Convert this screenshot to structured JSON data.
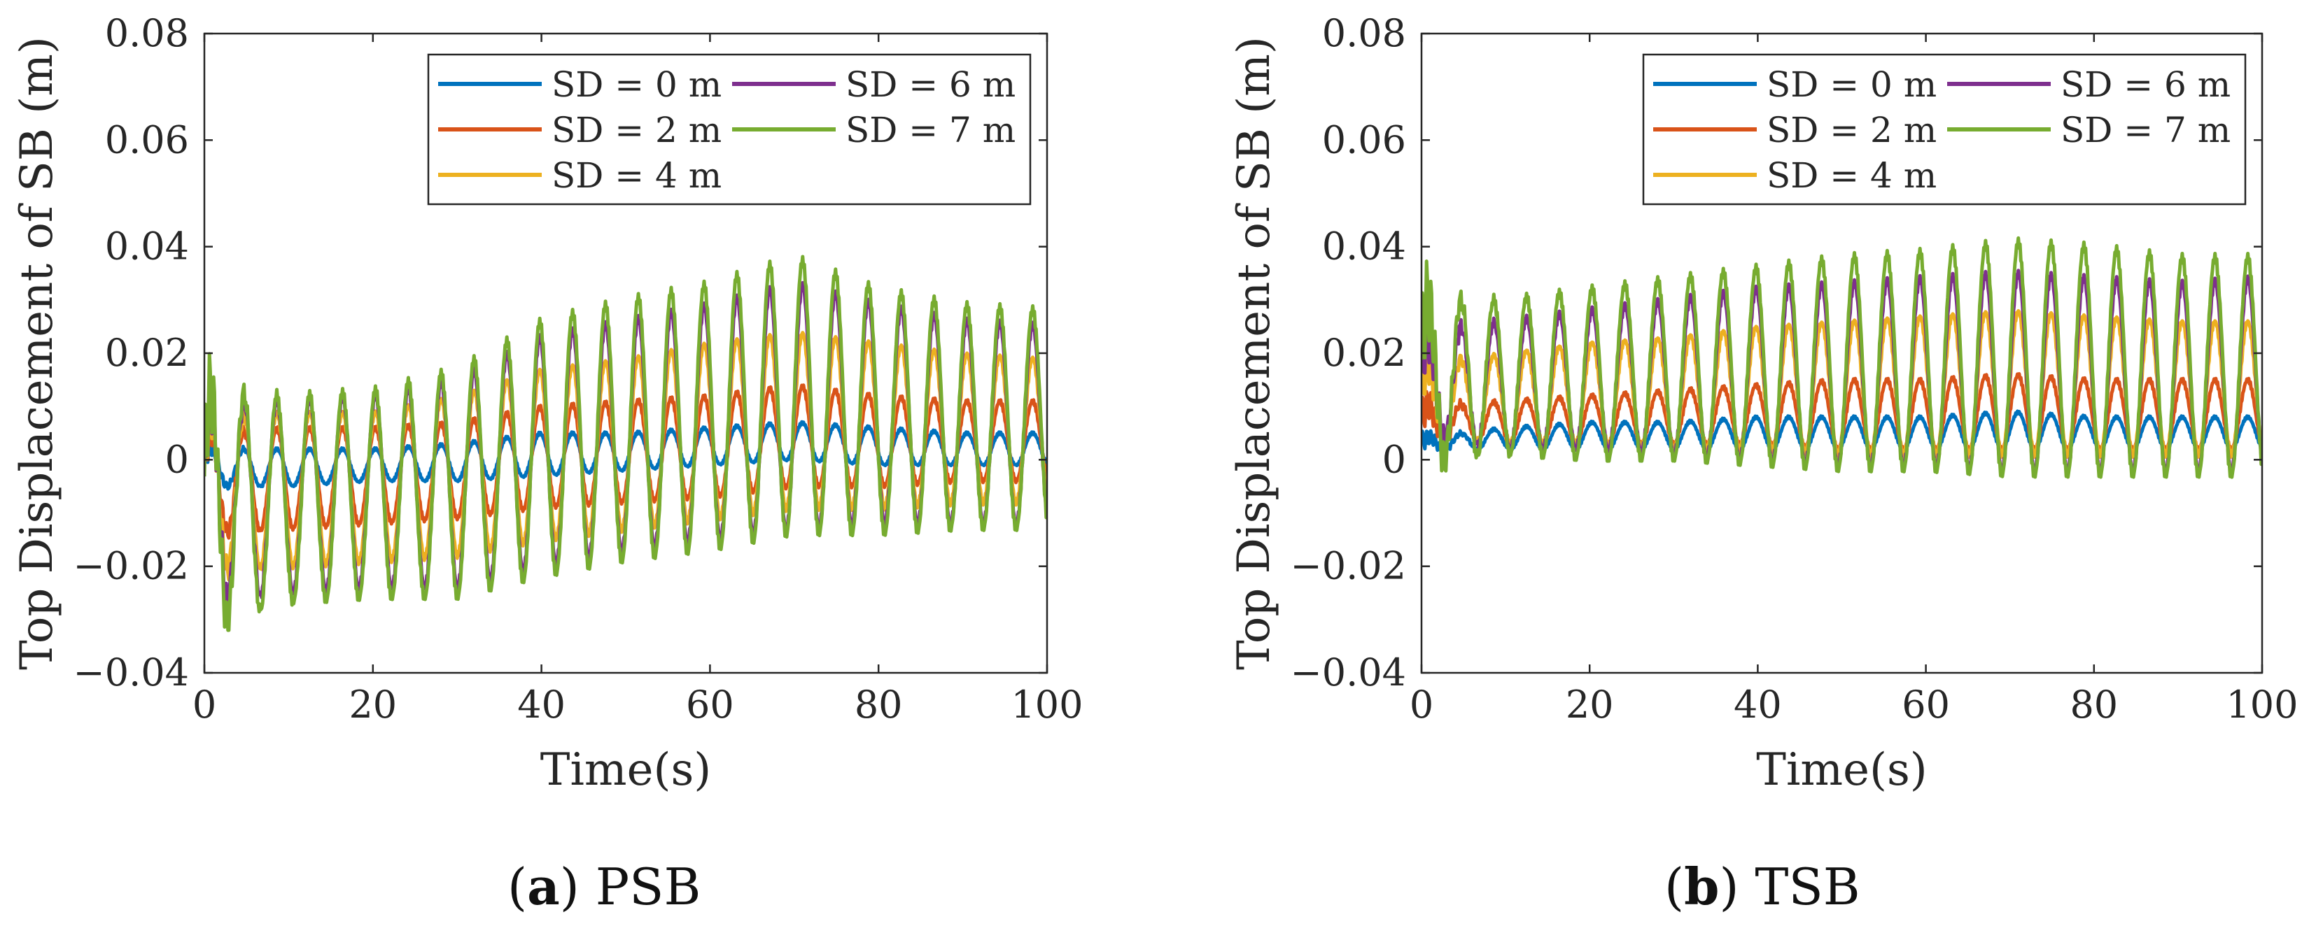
{
  "chart_data": [
    {
      "id": "a",
      "type": "line",
      "caption_label": "a",
      "caption_text": "PSB",
      "xlabel": "Time(s)",
      "ylabel": "Top Displacement of SB (m)",
      "xlim": [
        0,
        100
      ],
      "ylim": [
        -0.04,
        0.08
      ],
      "xticks": [
        0,
        20,
        40,
        60,
        80,
        100
      ],
      "xtick_labels": [
        "0",
        "20",
        "40",
        "60",
        "80",
        "100"
      ],
      "yticks": [
        -0.04,
        -0.02,
        0,
        0.02,
        0.04,
        0.06,
        0.08
      ],
      "ytick_labels": [
        "−0.04",
        "−0.02",
        "0",
        "0.02",
        "0.04",
        "0.06",
        "0.08"
      ],
      "legend_position": "top-right",
      "period_s": 3.9,
      "series": [
        {
          "name": "SD = 0 m",
          "color": "#0072BD",
          "t": [
            0,
            10,
            20,
            30,
            40,
            50,
            60,
            70,
            80,
            90,
            100
          ],
          "upper": [
            0.002,
            0.002,
            0.002,
            0.003,
            0.005,
            0.005,
            0.006,
            0.007,
            0.006,
            0.005,
            0.005
          ],
          "lower": [
            -0.005,
            -0.005,
            -0.004,
            -0.004,
            -0.003,
            -0.002,
            -0.001,
            0.0,
            -0.001,
            -0.001,
            -0.001
          ]
        },
        {
          "name": "SD = 2 m",
          "color": "#D95319",
          "t": [
            0,
            10,
            20,
            30,
            40,
            50,
            60,
            70,
            80,
            90,
            100
          ],
          "upper": [
            0.005,
            0.006,
            0.006,
            0.007,
            0.01,
            0.011,
            0.012,
            0.014,
            0.012,
            0.011,
            0.011
          ],
          "lower": [
            -0.014,
            -0.013,
            -0.012,
            -0.011,
            -0.009,
            -0.008,
            -0.007,
            -0.005,
            -0.005,
            -0.004,
            -0.004
          ]
        },
        {
          "name": "SD = 4 m",
          "color": "#EDB120",
          "t": [
            0,
            10,
            20,
            30,
            40,
            50,
            60,
            70,
            80,
            90,
            100
          ],
          "upper": [
            0.008,
            0.009,
            0.009,
            0.012,
            0.017,
            0.019,
            0.022,
            0.024,
            0.022,
            0.02,
            0.019
          ],
          "lower": [
            -0.021,
            -0.02,
            -0.019,
            -0.018,
            -0.015,
            -0.013,
            -0.011,
            -0.009,
            -0.009,
            -0.008,
            -0.008
          ]
        },
        {
          "name": "SD = 6 m",
          "color": "#7E2F8E",
          "t": [
            0,
            10,
            20,
            30,
            40,
            50,
            60,
            70,
            80,
            90,
            100
          ],
          "upper": [
            0.011,
            0.011,
            0.012,
            0.015,
            0.023,
            0.026,
            0.029,
            0.033,
            0.029,
            0.026,
            0.025
          ],
          "lower": [
            -0.027,
            -0.025,
            -0.024,
            -0.024,
            -0.02,
            -0.017,
            -0.015,
            -0.013,
            -0.012,
            -0.012,
            -0.012
          ]
        },
        {
          "name": "SD = 7 m",
          "color": "#77AC30",
          "t": [
            0,
            10,
            20,
            30,
            40,
            50,
            60,
            70,
            80,
            90,
            100
          ],
          "upper": [
            0.013,
            0.012,
            0.013,
            0.017,
            0.026,
            0.03,
            0.033,
            0.038,
            0.032,
            0.029,
            0.028
          ],
          "lower": [
            -0.031,
            -0.027,
            -0.026,
            -0.026,
            -0.022,
            -0.019,
            -0.017,
            -0.014,
            -0.014,
            -0.013,
            -0.013
          ]
        }
      ]
    },
    {
      "id": "b",
      "type": "line",
      "caption_label": "b",
      "caption_text": "TSB",
      "xlabel": "Time(s)",
      "ylabel": "Top Displacement of SB (m)",
      "xlim": [
        0,
        100
      ],
      "ylim": [
        -0.04,
        0.08
      ],
      "xticks": [
        0,
        20,
        40,
        60,
        80,
        100
      ],
      "xtick_labels": [
        "0",
        "20",
        "40",
        "60",
        "80",
        "100"
      ],
      "yticks": [
        -0.04,
        -0.02,
        0,
        0.02,
        0.04,
        0.06,
        0.08
      ],
      "ytick_labels": [
        "−0.04",
        "−0.02",
        "0",
        "0.02",
        "0.04",
        "0.06",
        "0.08"
      ],
      "legend_position": "top-right",
      "period_s": 3.9,
      "series": [
        {
          "name": "SD = 0 m",
          "color": "#0072BD",
          "t": [
            0,
            10,
            20,
            30,
            40,
            50,
            60,
            70,
            80,
            90,
            100
          ],
          "upper": [
            0.004,
            0.006,
            0.007,
            0.007,
            0.008,
            0.008,
            0.008,
            0.009,
            0.008,
            0.008,
            0.008
          ],
          "lower": [
            0.002,
            0.002,
            0.002,
            0.002,
            0.002,
            0.002,
            0.002,
            0.002,
            0.002,
            0.002,
            0.002
          ]
        },
        {
          "name": "SD = 2 m",
          "color": "#D95319",
          "t": [
            0,
            10,
            20,
            30,
            40,
            50,
            60,
            70,
            80,
            90,
            100
          ],
          "upper": [
            0.01,
            0.011,
            0.012,
            0.013,
            0.014,
            0.015,
            0.015,
            0.016,
            0.015,
            0.015,
            0.015
          ],
          "lower": [
            0.004,
            0.003,
            0.003,
            0.003,
            0.003,
            0.002,
            0.002,
            0.002,
            0.002,
            0.002,
            0.002
          ]
        },
        {
          "name": "SD = 4 m",
          "color": "#EDB120",
          "t": [
            0,
            10,
            20,
            30,
            40,
            50,
            60,
            70,
            80,
            90,
            100
          ],
          "upper": [
            0.018,
            0.02,
            0.022,
            0.023,
            0.025,
            0.026,
            0.027,
            0.028,
            0.027,
            0.026,
            0.026
          ],
          "lower": [
            0.004,
            0.003,
            0.003,
            0.002,
            0.002,
            0.001,
            0.001,
            0.001,
            0.001,
            0.001,
            0.001
          ]
        },
        {
          "name": "SD = 6 m",
          "color": "#7E2F8E",
          "t": [
            0,
            10,
            20,
            30,
            40,
            50,
            60,
            70,
            80,
            90,
            100
          ],
          "upper": [
            0.024,
            0.026,
            0.028,
            0.03,
            0.032,
            0.033,
            0.034,
            0.035,
            0.034,
            0.033,
            0.034
          ],
          "lower": [
            0.004,
            0.002,
            0.002,
            0.001,
            0.0,
            -0.001,
            -0.001,
            -0.002,
            -0.002,
            -0.002,
            -0.002
          ]
        },
        {
          "name": "SD = 7 m",
          "color": "#77AC30",
          "t": [
            0,
            10,
            20,
            30,
            40,
            50,
            60,
            70,
            80,
            90,
            100
          ],
          "upper": [
            0.03,
            0.03,
            0.032,
            0.034,
            0.036,
            0.038,
            0.039,
            0.041,
            0.04,
            0.038,
            0.038
          ],
          "lower": [
            0.0,
            0.001,
            0.0,
            0.0,
            -0.001,
            -0.002,
            -0.002,
            -0.003,
            -0.003,
            -0.003,
            -0.003
          ]
        }
      ]
    }
  ]
}
